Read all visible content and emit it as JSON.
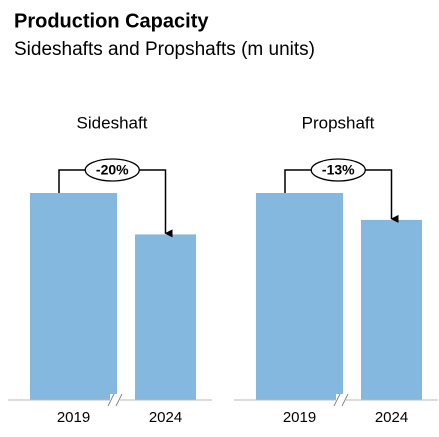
{
  "header": {
    "title": "Production Capacity",
    "subtitle": "Sideshafts and Propshafts (m units)"
  },
  "chart_data": [
    {
      "type": "bar",
      "title": "Sideshaft",
      "categories": [
        "2019",
        "2024"
      ],
      "values": [
        100,
        80
      ],
      "color": "#85b8de",
      "ylim": [
        0,
        100
      ],
      "annotation": "-20%"
    },
    {
      "type": "bar",
      "title": "Propshaft",
      "categories": [
        "2019",
        "2024"
      ],
      "values": [
        100,
        87
      ],
      "color": "#85b8de",
      "ylim": [
        0,
        100
      ],
      "annotation": "-13%"
    }
  ]
}
